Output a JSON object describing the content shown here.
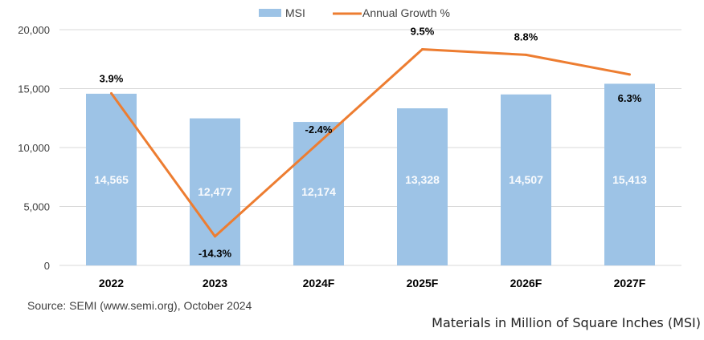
{
  "chart_data": {
    "type": "bar",
    "categories": [
      "2022",
      "2023",
      "2024F",
      "2025F",
      "2026F",
      "2027F"
    ],
    "series": [
      {
        "name": "MSI",
        "kind": "bar",
        "axis": "left",
        "values": [
          14565,
          12477,
          12174,
          13328,
          14507,
          15413
        ],
        "labels": [
          "14,565",
          "12,477",
          "12,174",
          "13,328",
          "14,507",
          "15,413"
        ],
        "color": "#9DC3E6"
      },
      {
        "name": "Annual Growth %",
        "kind": "line",
        "axis": "hidden-right",
        "values": [
          3.9,
          -14.3,
          -2.4,
          9.5,
          8.8,
          6.3
        ],
        "labels": [
          "3.9%",
          "-14.3%",
          "-2.4%",
          "9.5%",
          "8.8%",
          "6.3%"
        ],
        "color": "#ED7D31"
      }
    ],
    "ylim": [
      0,
      20000
    ],
    "yticks": [
      0,
      5000,
      10000,
      15000,
      20000
    ],
    "ytick_labels": [
      "0",
      "5,000",
      "10,000",
      "15,000",
      "20,000"
    ],
    "growth_scale": [
      -18,
      12
    ],
    "grid": true,
    "legend_position": "top-center",
    "bar_label_color": "#ffffff",
    "gridline_color": "#d9d9d9"
  },
  "source_note": "Source: SEMI (www.semi.org), October 2024",
  "caption": "Materials in Million of Square Inches (MSI)"
}
